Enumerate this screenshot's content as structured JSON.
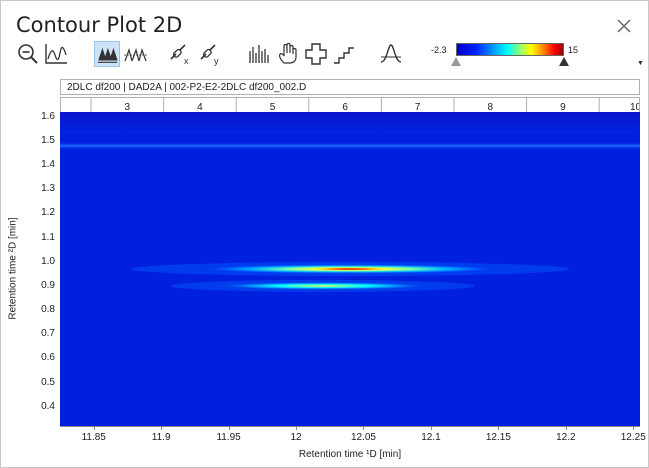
{
  "window": {
    "title": "Contour Plot 2D"
  },
  "toolbar": {
    "icons": [
      "zoom-out-icon",
      "chromatogram-icon",
      "contour-peaks-icon",
      "peaks-icon",
      "link-x-icon",
      "link-y-icon",
      "spectrum-icon",
      "pan-hand-icon",
      "crosshair-plus-icon",
      "stair-step-icon",
      "peak-shape-icon"
    ]
  },
  "colorscale": {
    "min": "-2.3",
    "max": "15",
    "min_marker_fraction": 0.0,
    "max_marker_fraction": 1.0
  },
  "plot": {
    "header": "2DLC df200 | DAD2A | 002-P2-E2-2DLC df200_002.D",
    "top_ticks": [
      "3",
      "4",
      "5",
      "6",
      "7",
      "8",
      "9",
      "10"
    ],
    "y_ticks": [
      "1.6",
      "1.5",
      "1.4",
      "1.3",
      "1.2",
      "1.1",
      "1.0",
      "0.9",
      "0.8",
      "0.7",
      "0.6",
      "0.5",
      "0.4"
    ],
    "x_ticks": [
      "11.85",
      "11.9",
      "11.95",
      "12",
      "12.05",
      "12.1",
      "12.15",
      "12.2",
      "12.25"
    ],
    "xlabel": "Retention time ¹D [min]",
    "ylabel": "Retention time ²D [min]"
  },
  "chart_data": {
    "type": "heatmap",
    "title": "",
    "xlabel": "Retention time ¹D [min]",
    "ylabel": "Retention time ²D [min]",
    "xlim": [
      11.825,
      12.255
    ],
    "ylim": [
      0.32,
      1.62
    ],
    "colorbar_range": [
      -2.3,
      15
    ],
    "secondary_x_ticks": [
      "3",
      "4",
      "5",
      "6",
      "7",
      "8",
      "9",
      "10"
    ],
    "features": [
      {
        "type": "band",
        "y": 1.48,
        "x_range": [
          11.825,
          12.255
        ],
        "intensity": "low"
      },
      {
        "type": "peak",
        "y": 0.97,
        "x_center": 12.04,
        "x_range": [
          11.93,
          12.17
        ],
        "intensity": "high"
      },
      {
        "type": "peak",
        "y": 0.9,
        "x_center": 12.02,
        "x_range": [
          11.94,
          12.11
        ],
        "intensity": "medium"
      }
    ]
  }
}
